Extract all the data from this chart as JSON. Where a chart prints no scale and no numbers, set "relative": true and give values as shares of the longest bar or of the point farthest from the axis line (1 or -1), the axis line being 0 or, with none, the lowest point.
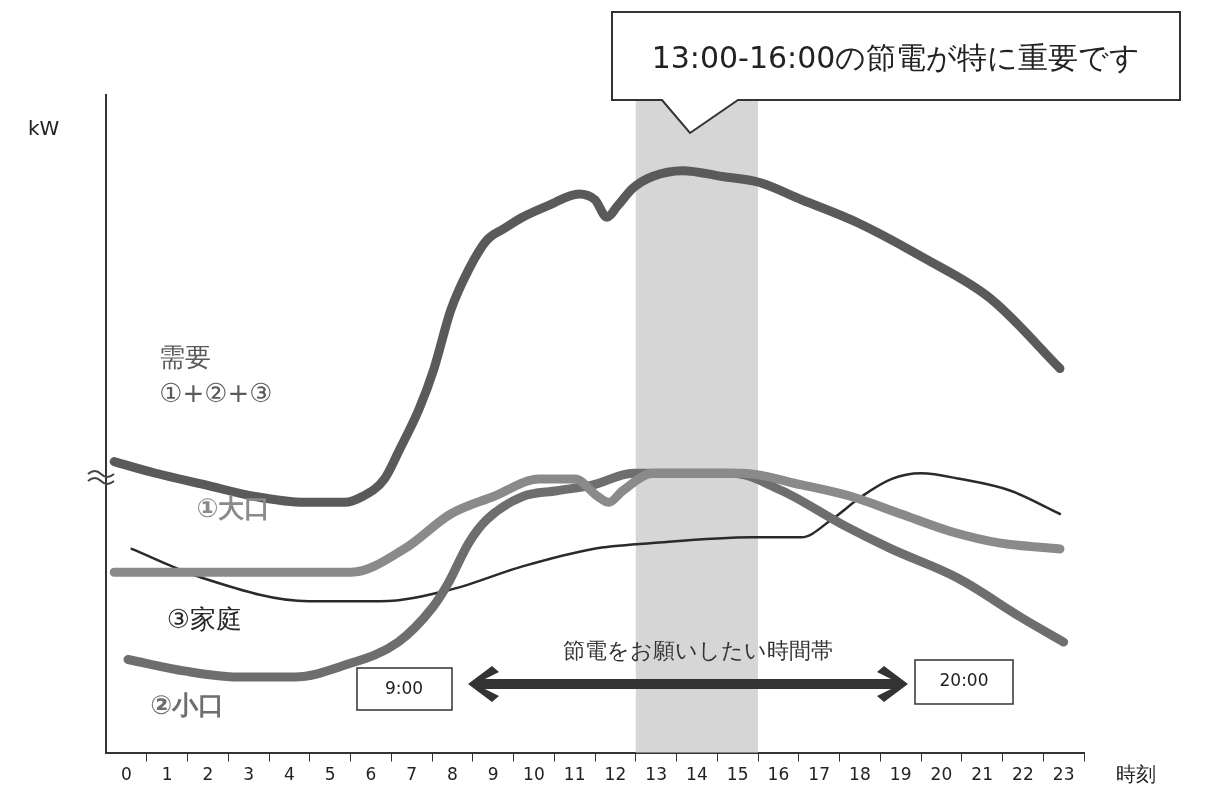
{
  "chart_data": {
    "type": "line",
    "relative": true,
    "xlabel": "時刻",
    "ylabel": "kW",
    "xlim": [
      0,
      24
    ],
    "xticks": [
      {
        "value": 0.5,
        "label": "0"
      },
      {
        "value": 1.5,
        "label": "1"
      },
      {
        "value": 2.5,
        "label": "2"
      },
      {
        "value": 3.5,
        "label": "3"
      },
      {
        "value": 4.5,
        "label": "4"
      },
      {
        "value": 5.5,
        "label": "5"
      },
      {
        "value": 6.5,
        "label": "6"
      },
      {
        "value": 7.5,
        "label": "7"
      },
      {
        "value": 8.5,
        "label": "8"
      },
      {
        "value": 9.5,
        "label": "9"
      },
      {
        "value": 10.5,
        "label": "10"
      },
      {
        "value": 11.5,
        "label": "11"
      },
      {
        "value": 12.5,
        "label": "12"
      },
      {
        "value": 13.5,
        "label": "13"
      },
      {
        "value": 14.5,
        "label": "14"
      },
      {
        "value": 15.5,
        "label": "15"
      },
      {
        "value": 16.5,
        "label": "16"
      },
      {
        "value": 17.5,
        "label": "17"
      },
      {
        "value": 18.5,
        "label": "18"
      },
      {
        "value": 19.5,
        "label": "19"
      },
      {
        "value": 20.5,
        "label": "20"
      },
      {
        "value": 21.5,
        "label": "21"
      },
      {
        "value": 22.5,
        "label": "22"
      },
      {
        "value": 23.5,
        "label": "23"
      },
      {
        "value": 1,
        "label": null
      },
      {
        "value": 2,
        "label": null
      },
      {
        "value": 3,
        "label": null
      },
      {
        "value": 4,
        "label": null
      },
      {
        "value": 5,
        "label": null
      },
      {
        "value": 6,
        "label": null
      },
      {
        "value": 7,
        "label": null
      },
      {
        "value": 8,
        "label": null
      },
      {
        "value": 9,
        "label": null
      },
      {
        "value": 10,
        "label": null
      },
      {
        "value": 11,
        "label": null
      },
      {
        "value": 12,
        "label": null
      },
      {
        "value": 13,
        "label": null
      },
      {
        "value": 14,
        "label": null
      },
      {
        "value": 15,
        "label": null
      },
      {
        "value": 16,
        "label": null
      },
      {
        "value": 17,
        "label": null
      },
      {
        "value": 18,
        "label": null
      },
      {
        "value": 19,
        "label": null
      },
      {
        "value": 20,
        "label": null
      },
      {
        "value": 21,
        "label": null
      },
      {
        "value": 22,
        "label": null
      },
      {
        "value": 23,
        "label": null
      },
      {
        "value": 24,
        "label": null
      }
    ],
    "series": [
      {
        "name": "需要\n①+②+③",
        "color": "#5a5a5a",
        "x": [
          0.2,
          1.22,
          2.44,
          3.66,
          4.88,
          5.85,
          6.29,
          6.83,
          7.2,
          7.68,
          8.05,
          8.46,
          8.9,
          9.34,
          9.76,
          10.22,
          10.85,
          11.61,
          12.0,
          12.29,
          12.56,
          12.93,
          13.41,
          14.15,
          15.12,
          16.02,
          17.07,
          18.46,
          20.07,
          21.71,
          23.41
        ],
        "values": [
          0.5,
          0.48,
          0.46,
          0.44,
          0.43,
          0.43,
          0.44,
          0.47,
          0.52,
          0.59,
          0.66,
          0.76,
          0.83,
          0.88,
          0.9,
          0.92,
          0.94,
          0.96,
          0.95,
          0.92,
          0.94,
          0.97,
          0.99,
          1.0,
          0.99,
          0.98,
          0.95,
          0.91,
          0.85,
          0.78,
          0.66
        ]
      },
      {
        "name": "①大口",
        "color": "#8a8a8a",
        "x": [
          0.2,
          2.44,
          4.88,
          6.02,
          7.32,
          8.46,
          9.51,
          10.63,
          11.51,
          12.07,
          12.34,
          12.68,
          13.41,
          14.39,
          15.61,
          17.07,
          18.29,
          19.51,
          20.73,
          21.95,
          23.41
        ],
        "values": [
          0.31,
          0.31,
          0.31,
          0.31,
          0.35,
          0.41,
          0.44,
          0.47,
          0.47,
          0.44,
          0.43,
          0.45,
          0.48,
          0.48,
          0.48,
          0.46,
          0.44,
          0.41,
          0.38,
          0.36,
          0.35
        ]
      },
      {
        "name": "②小口",
        "color": "#6e6e6e",
        "x": [
          0.54,
          1.95,
          3.24,
          4.63,
          5.85,
          7.17,
          8.02,
          8.39,
          8.9,
          9.34,
          10.22,
          11.07,
          11.95,
          12.93,
          14.15,
          15.37,
          16.59,
          18.12,
          19.27,
          20.9,
          22.51,
          23.5
        ],
        "values": [
          0.16,
          0.14,
          0.13,
          0.13,
          0.15,
          0.19,
          0.25,
          0.29,
          0.36,
          0.4,
          0.44,
          0.45,
          0.46,
          0.48,
          0.48,
          0.48,
          0.45,
          0.39,
          0.35,
          0.3,
          0.23,
          0.19
        ]
      },
      {
        "name": "③家庭",
        "color": "#2a2a2a",
        "x": [
          0.63,
          2.37,
          4.98,
          6.73,
          8.46,
          10.22,
          11.95,
          13.41,
          15.85,
          17.07,
          17.8,
          18.54,
          19.27,
          20.0,
          20.98,
          22.2,
          23.41
        ],
        "values": [
          0.35,
          0.3,
          0.26,
          0.26,
          0.28,
          0.32,
          0.35,
          0.36,
          0.37,
          0.37,
          0.4,
          0.44,
          0.47,
          0.48,
          0.47,
          0.45,
          0.41
        ]
      }
    ],
    "bands": [
      {
        "axis": "x",
        "from": 13,
        "to": 16,
        "color": "#d6d6d6"
      }
    ],
    "annotations": [
      "13:00-16:00の節電が特に重要です",
      "節電をお願いしたい時間帯",
      "9:00",
      "20:00"
    ]
  }
}
